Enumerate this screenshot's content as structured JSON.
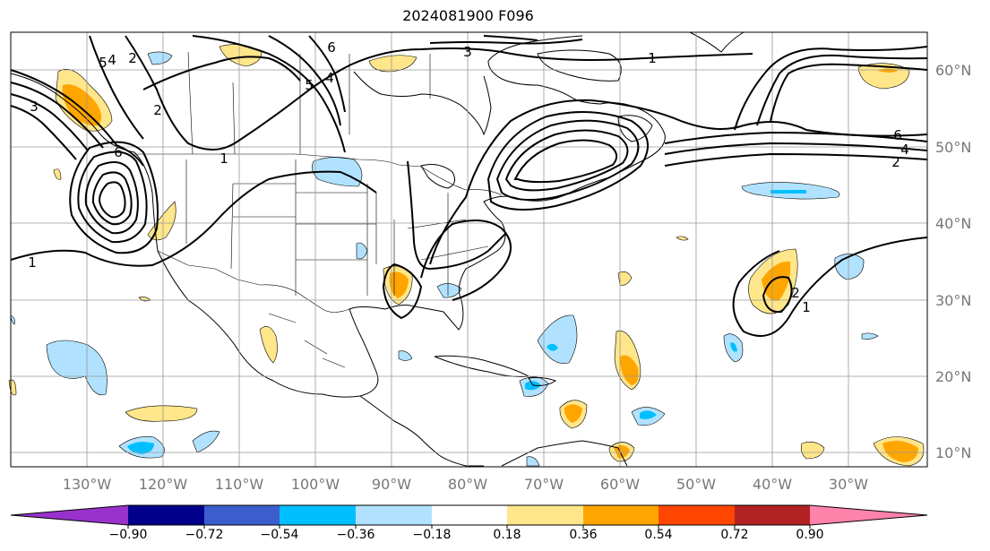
{
  "title": "2024081900 F096",
  "lon_labels": [
    "130°W",
    "120°W",
    "110°W",
    "100°W",
    "90°W",
    "80°W",
    "70°W",
    "60°W",
    "50°W",
    "40°W",
    "30°W"
  ],
  "lat_labels": [
    "60°N",
    "50°N",
    "40°N",
    "30°N",
    "20°N",
    "10°N"
  ],
  "colorbar": {
    "ticks": [
      "−0.90",
      "−0.72",
      "−0.54",
      "−0.36",
      "−0.18",
      "0.18",
      "0.36",
      "0.54",
      "0.72",
      "0.90"
    ],
    "colors": [
      "#9932cc",
      "#00008b",
      "#3a5fcd",
      "#00bfff",
      "#b0e2ff",
      "#ffffff",
      "#ffe68a",
      "#ffa500",
      "#ff4500",
      "#b22222",
      "#ff82ab"
    ]
  },
  "contour_labels": [
    "1",
    "2",
    "3",
    "4",
    "5",
    "6"
  ],
  "colors": {
    "line": "#000000",
    "grid": "#999999",
    "label": "#777777"
  }
}
